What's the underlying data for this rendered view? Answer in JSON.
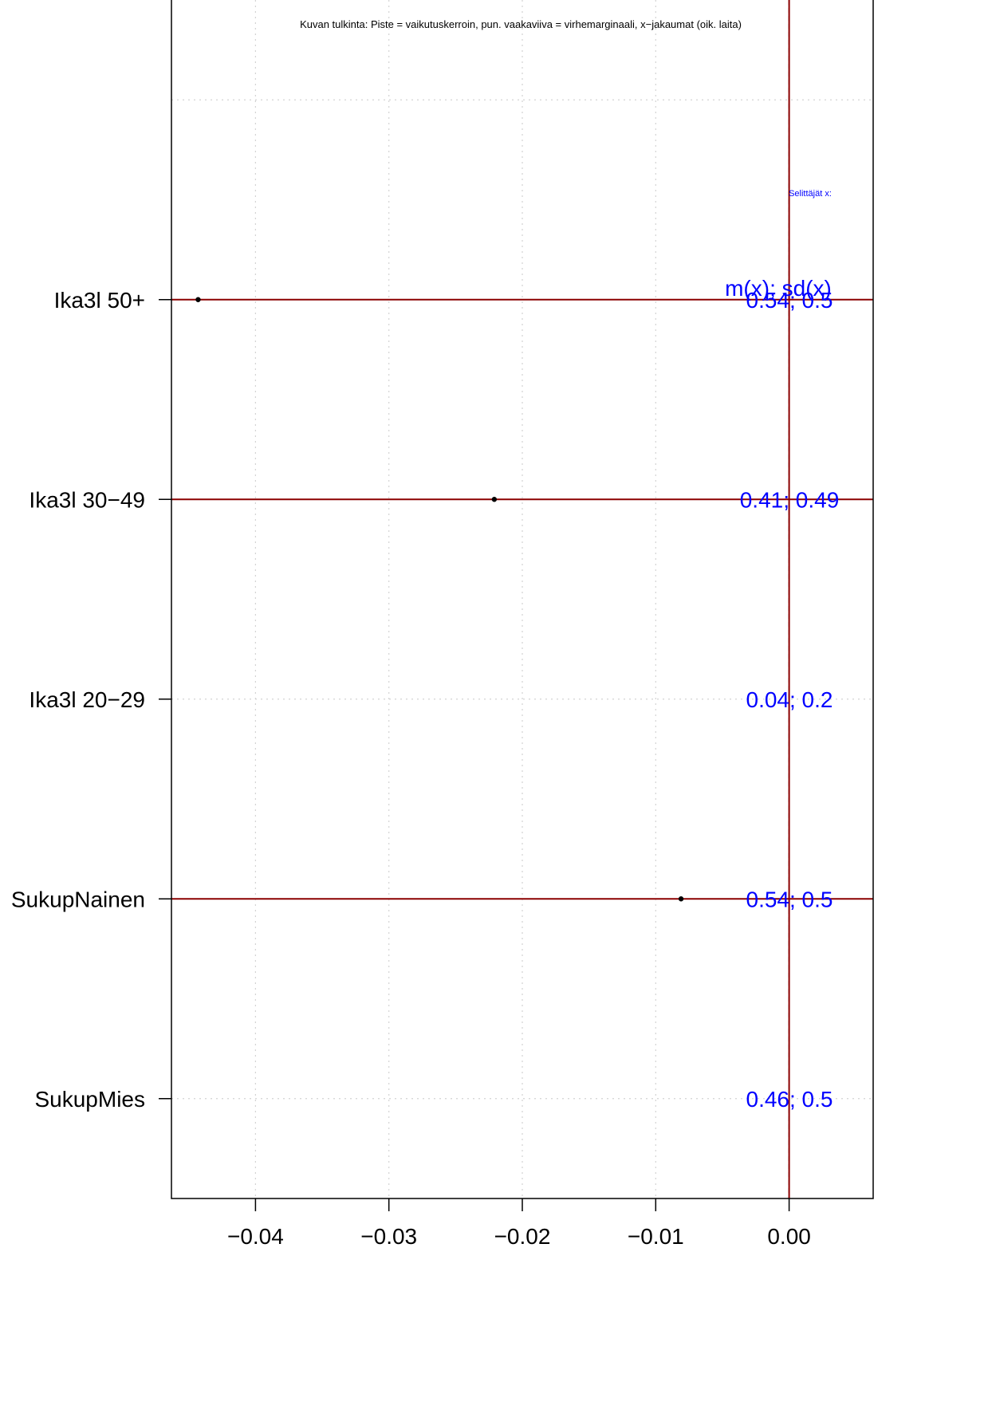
{
  "chart_data": {
    "type": "scatter",
    "annotation": "Kuvan tulkinta: Piste = vaikutuskerroin, pun. vaakaviiva = virhemarginaali, x−jakaumat (oik. laita)",
    "legend_title": "Selittäjät x:",
    "stats_header": "m(x); sd(x)",
    "xlim": [
      -0.0463,
      0.0063
    ],
    "ylim": [
      0.5,
      6.5
    ],
    "x_ticks": [
      -0.04,
      -0.03,
      -0.02,
      -0.01,
      0.0
    ],
    "x_tick_labels": [
      "−0.04",
      "−0.03",
      "−0.02",
      "−0.01",
      "0.00"
    ],
    "grid": true,
    "reference_x": 0.0,
    "rows": [
      {
        "label": "Ika3l 50+",
        "y": 5,
        "coef": -0.0443,
        "has_point": true,
        "stats": "0.54; 0.5"
      },
      {
        "label": "Ika3l 30−49",
        "y": 4,
        "coef": -0.0221,
        "has_point": true,
        "stats": "0.41; 0.49"
      },
      {
        "label": "Ika3l 20−29",
        "y": 3,
        "coef": null,
        "has_point": false,
        "stats": "0.04; 0.2"
      },
      {
        "label": "SukupNainen",
        "y": 2,
        "coef": -0.0081,
        "has_point": true,
        "stats": "0.54; 0.5"
      },
      {
        "label": "SukupMies",
        "y": 1,
        "coef": null,
        "has_point": false,
        "stats": "0.46; 0.5"
      }
    ],
    "colors": {
      "interval": "#8b0000",
      "point": "#000000",
      "stats_text": "#0000ff",
      "grid": "#d3d3d3",
      "reference_line": "#8b0000"
    }
  }
}
